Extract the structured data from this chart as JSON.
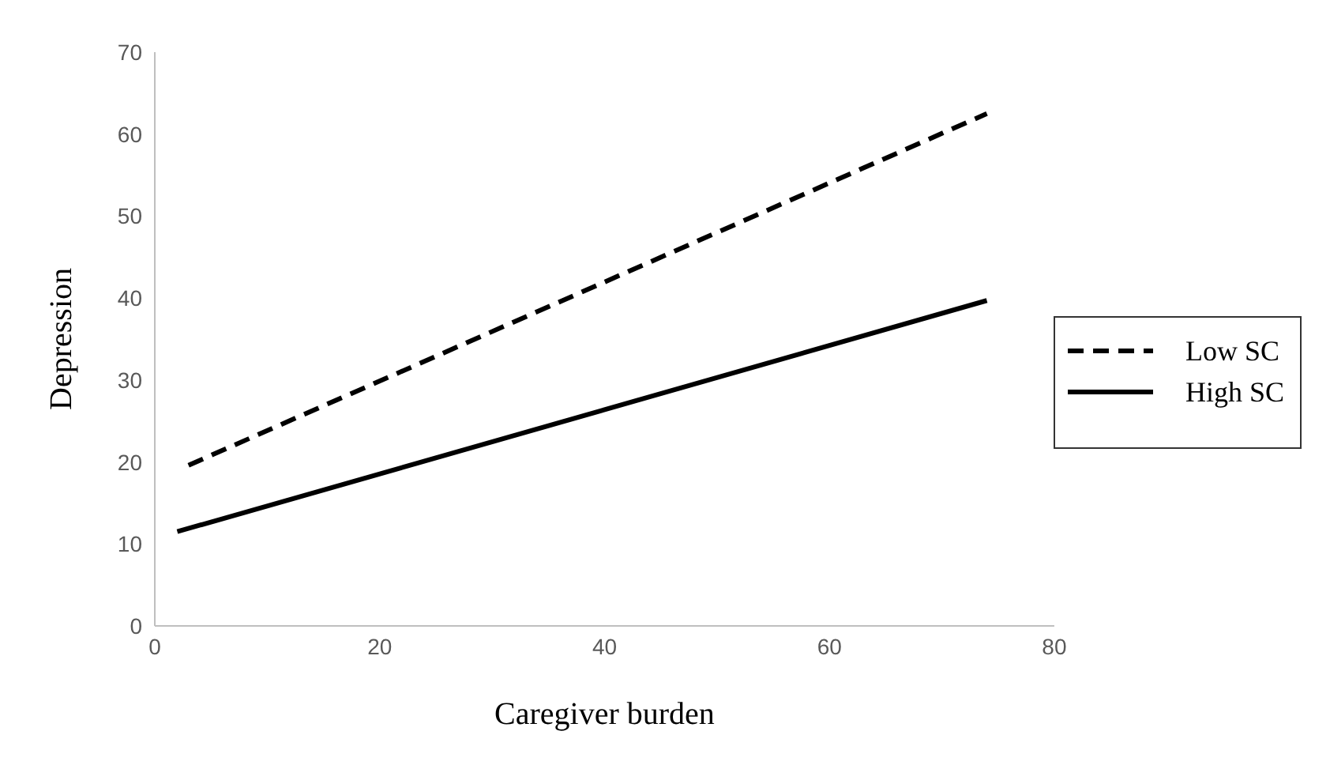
{
  "chart_data": {
    "type": "line",
    "xlabel": "Caregiver burden",
    "ylabel": "Depression",
    "xlim": [
      0,
      80
    ],
    "xticks": [
      0,
      20,
      40,
      60,
      80
    ],
    "ylim": [
      0,
      70
    ],
    "yticks": [
      0,
      10,
      20,
      30,
      40,
      50,
      60,
      70
    ],
    "grid": false,
    "legend": "right",
    "marker": "none",
    "series": [
      {
        "name": "Low SC",
        "color": "#000000",
        "line_style": "dashed",
        "x": [
          3,
          74
        ],
        "values": [
          19.6,
          62.5
        ]
      },
      {
        "name": "High SC",
        "color": "#000000",
        "line_style": "solid",
        "x": [
          2,
          74
        ],
        "values": [
          11.5,
          39.7
        ]
      }
    ]
  }
}
